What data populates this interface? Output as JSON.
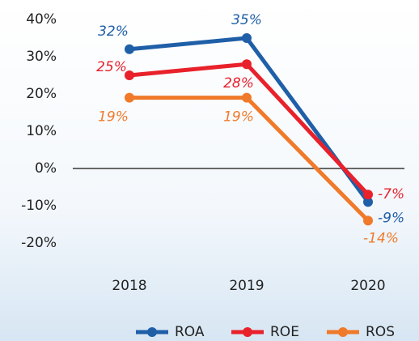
{
  "chart_data": {
    "type": "line",
    "categories": [
      "2018",
      "2019",
      "2020"
    ],
    "series": [
      {
        "name": "ROA",
        "color": "#1f5fa8",
        "values": [
          32,
          35,
          -9
        ],
        "value_labels": [
          "32%",
          "35%",
          "-9%"
        ]
      },
      {
        "name": "ROE",
        "color": "#e8212b",
        "values": [
          25,
          28,
          -7
        ],
        "value_labels": [
          "25%",
          "28%",
          "-7%"
        ]
      },
      {
        "name": "ROS",
        "color": "#f07a2a",
        "values": [
          19,
          19,
          -14
        ],
        "value_labels": [
          "19%",
          "19%",
          "-14%"
        ]
      }
    ],
    "ylim": [
      -20,
      40
    ],
    "yticks": [
      {
        "value": -20,
        "label": "-20%"
      },
      {
        "value": -10,
        "label": "-10%"
      },
      {
        "value": 0,
        "label": "0%"
      },
      {
        "value": 10,
        "label": "10%"
      },
      {
        "value": 20,
        "label": "20%"
      },
      {
        "value": 30,
        "label": "30%"
      },
      {
        "value": 40,
        "label": "40%"
      }
    ],
    "grid": false,
    "legend": "bottom"
  }
}
